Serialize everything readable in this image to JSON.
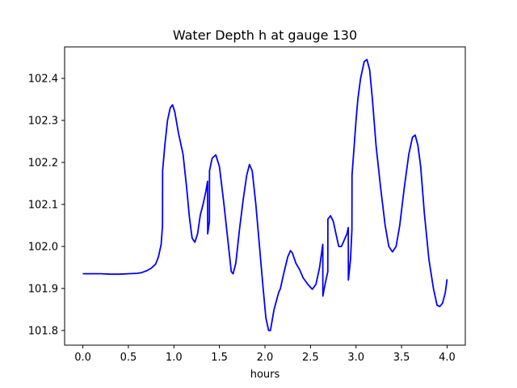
{
  "chart_data": {
    "type": "line",
    "title": "Water Depth h at gauge 130",
    "xlabel": "hours",
    "ylabel": "",
    "xlim": [
      -0.2,
      4.2
    ],
    "ylim": [
      101.765,
      102.475
    ],
    "x_ticks": [
      0.0,
      0.5,
      1.0,
      1.5,
      2.0,
      2.5,
      3.0,
      3.5,
      4.0
    ],
    "x_tick_labels": [
      "0.0",
      "0.5",
      "1.0",
      "1.5",
      "2.0",
      "2.5",
      "3.0",
      "3.5",
      "4.0"
    ],
    "y_ticks": [
      101.8,
      101.9,
      102.0,
      102.1,
      102.2,
      102.3,
      102.4
    ],
    "y_tick_labels": [
      "101.8",
      "101.9",
      "102.0",
      "102.1",
      "102.2",
      "102.3",
      "102.4"
    ],
    "grid": false,
    "series": [
      {
        "color": "#0000ff",
        "points": [
          [
            0.0,
            101.935
          ],
          [
            0.1,
            101.935
          ],
          [
            0.2,
            101.935
          ],
          [
            0.3,
            101.934
          ],
          [
            0.4,
            101.934
          ],
          [
            0.5,
            101.935
          ],
          [
            0.6,
            101.936
          ],
          [
            0.65,
            101.938
          ],
          [
            0.7,
            101.942
          ],
          [
            0.75,
            101.948
          ],
          [
            0.8,
            101.958
          ],
          [
            0.83,
            101.975
          ],
          [
            0.86,
            102.005
          ],
          [
            0.875,
            102.05
          ],
          [
            0.876,
            102.18
          ],
          [
            0.9,
            102.24
          ],
          [
            0.93,
            102.3
          ],
          [
            0.96,
            102.33
          ],
          [
            0.985,
            102.337
          ],
          [
            1.01,
            102.32
          ],
          [
            1.05,
            102.27
          ],
          [
            1.1,
            102.22
          ],
          [
            1.14,
            102.14
          ],
          [
            1.17,
            102.07
          ],
          [
            1.2,
            102.02
          ],
          [
            1.23,
            102.01
          ],
          [
            1.26,
            102.03
          ],
          [
            1.29,
            102.075
          ],
          [
            1.32,
            102.1
          ],
          [
            1.35,
            102.13
          ],
          [
            1.37,
            102.155
          ],
          [
            1.371,
            102.03
          ],
          [
            1.39,
            102.06
          ],
          [
            1.391,
            102.18
          ],
          [
            1.42,
            102.21
          ],
          [
            1.46,
            102.218
          ],
          [
            1.5,
            102.19
          ],
          [
            1.55,
            102.1
          ],
          [
            1.6,
            102.0
          ],
          [
            1.63,
            101.94
          ],
          [
            1.65,
            101.935
          ],
          [
            1.68,
            101.96
          ],
          [
            1.72,
            102.04
          ],
          [
            1.76,
            102.11
          ],
          [
            1.8,
            102.17
          ],
          [
            1.83,
            102.195
          ],
          [
            1.86,
            102.18
          ],
          [
            1.9,
            102.1
          ],
          [
            1.94,
            102.0
          ],
          [
            1.98,
            101.9
          ],
          [
            2.01,
            101.83
          ],
          [
            2.04,
            101.8
          ],
          [
            2.06,
            101.8
          ],
          [
            2.1,
            101.85
          ],
          [
            2.15,
            101.89
          ],
          [
            2.17,
            101.9
          ],
          [
            2.2,
            101.93
          ],
          [
            2.25,
            101.975
          ],
          [
            2.28,
            101.99
          ],
          [
            2.3,
            101.985
          ],
          [
            2.34,
            101.96
          ],
          [
            2.38,
            101.945
          ],
          [
            2.42,
            101.925
          ],
          [
            2.47,
            101.91
          ],
          [
            2.52,
            101.898
          ],
          [
            2.56,
            101.91
          ],
          [
            2.6,
            101.95
          ],
          [
            2.635,
            102.005
          ],
          [
            2.636,
            101.882
          ],
          [
            2.66,
            101.91
          ],
          [
            2.69,
            101.94
          ],
          [
            2.691,
            102.065
          ],
          [
            2.72,
            102.073
          ],
          [
            2.75,
            102.06
          ],
          [
            2.78,
            102.03
          ],
          [
            2.81,
            102.0
          ],
          [
            2.84,
            102.0
          ],
          [
            2.87,
            102.015
          ],
          [
            2.9,
            102.03
          ],
          [
            2.915,
            102.045
          ],
          [
            2.916,
            101.92
          ],
          [
            2.94,
            101.97
          ],
          [
            2.955,
            102.04
          ],
          [
            2.956,
            102.17
          ],
          [
            2.98,
            102.24
          ],
          [
            3.0,
            102.3
          ],
          [
            3.02,
            102.35
          ],
          [
            3.05,
            102.4
          ],
          [
            3.09,
            102.44
          ],
          [
            3.12,
            102.445
          ],
          [
            3.15,
            102.42
          ],
          [
            3.18,
            102.35
          ],
          [
            3.22,
            102.24
          ],
          [
            3.27,
            102.14
          ],
          [
            3.32,
            102.05
          ],
          [
            3.36,
            102.0
          ],
          [
            3.4,
            101.987
          ],
          [
            3.44,
            102.0
          ],
          [
            3.48,
            102.05
          ],
          [
            3.53,
            102.14
          ],
          [
            3.58,
            102.22
          ],
          [
            3.62,
            102.26
          ],
          [
            3.65,
            102.265
          ],
          [
            3.68,
            102.24
          ],
          [
            3.71,
            102.19
          ],
          [
            3.75,
            102.08
          ],
          [
            3.8,
            101.97
          ],
          [
            3.85,
            101.9
          ],
          [
            3.89,
            101.86
          ],
          [
            3.92,
            101.857
          ],
          [
            3.95,
            101.865
          ],
          [
            3.98,
            101.89
          ],
          [
            4.0,
            101.922
          ]
        ]
      }
    ]
  }
}
